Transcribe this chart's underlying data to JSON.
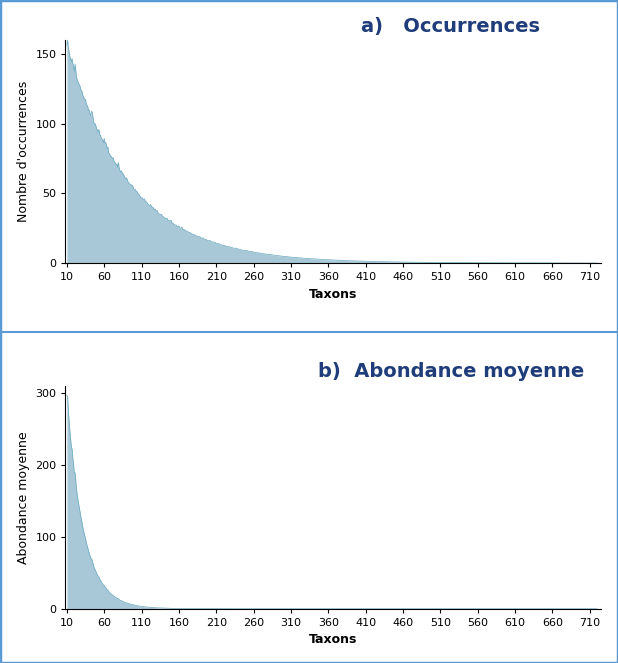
{
  "n_taxa": 720,
  "x_start": 10,
  "x_end": 720,
  "x_ticks": [
    10,
    60,
    110,
    160,
    210,
    260,
    310,
    360,
    410,
    460,
    510,
    560,
    610,
    660,
    710
  ],
  "plot_a": {
    "title": "a)   Occurrences",
    "ylabel": "Nombre d'occurrences",
    "xlabel": "Taxons",
    "ylim": [
      0,
      160
    ],
    "yticks": [
      0,
      50,
      100,
      150
    ],
    "peak": 155,
    "decay_rate": 0.012,
    "color_fill": "#a8c8d8",
    "color_line": "#6aaabf"
  },
  "plot_b": {
    "title": "b)  Abondance moyenne",
    "ylabel": "Abondance moyenne",
    "xlabel": "Taxons",
    "ylim": [
      0,
      310
    ],
    "yticks": [
      0,
      100,
      200,
      300
    ],
    "peak": 295,
    "decay_rate": 0.045,
    "color_fill": "#a8c8d8",
    "color_line": "#6aaabf"
  },
  "title_color": "#1f3d7a",
  "title_fontsize": 14,
  "label_fontsize": 9,
  "tick_fontsize": 8,
  "border_color": "#5b9bd5",
  "background_color": "#ffffff"
}
